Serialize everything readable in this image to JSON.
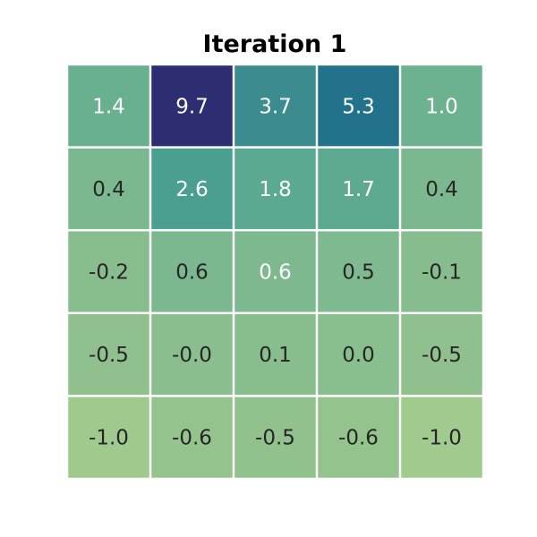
{
  "chart_data": {
    "type": "heatmap",
    "title": "Iteration 1",
    "rows": 5,
    "cols": 5,
    "values": [
      [
        1.4,
        9.7,
        3.7,
        5.3,
        1.0
      ],
      [
        0.4,
        2.6,
        1.8,
        1.7,
        0.4
      ],
      [
        -0.2,
        0.6,
        0.6,
        0.5,
        -0.1
      ],
      [
        -0.5,
        -0.0,
        0.1,
        0.0,
        -0.5
      ],
      [
        -1.0,
        -0.6,
        -0.5,
        -0.6,
        -1.0
      ]
    ],
    "labels": [
      [
        "1.4",
        "9.7",
        "3.7",
        "5.3",
        "1.0"
      ],
      [
        "0.4",
        "2.6",
        "1.8",
        "1.7",
        "0.4"
      ],
      [
        "-0.2",
        "0.6",
        "0.6",
        "0.5",
        "-0.1"
      ],
      [
        "-0.5",
        "-0.0",
        "0.1",
        "0.0",
        "-0.5"
      ],
      [
        "-1.0",
        "-0.6",
        "-0.5",
        "-0.6",
        "-1.0"
      ]
    ],
    "colorbar": false,
    "axis_ticks": false,
    "colors": {
      "cells": [
        [
          "#68b08f",
          "#2d2e72",
          "#3c8b8e",
          "#23728b",
          "#6cb28e"
        ],
        [
          "#7bb88f",
          "#4a9f91",
          "#5aa990",
          "#5daa90",
          "#7bb88f"
        ],
        [
          "#88bd8e",
          "#7bb88f",
          "#7db88f",
          "#7fb98f",
          "#87bd8e"
        ],
        [
          "#90c08d",
          "#8abe8e",
          "#88bd8e",
          "#89be8e",
          "#90c08d"
        ],
        [
          "#a0c98e",
          "#95c38e",
          "#91c18d",
          "#95c38e",
          "#a1ca8e"
        ]
      ],
      "grid_line": "#ffffff",
      "text_light": "#ffffff",
      "text_dark": "#262626",
      "title": "#000000"
    }
  }
}
